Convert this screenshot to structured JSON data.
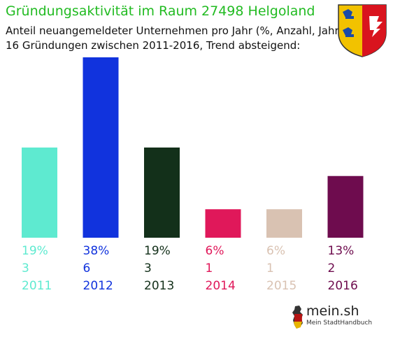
{
  "header": {
    "title": "Gründungsaktivität im Raum 27498 Helgoland",
    "subtitle_1": "Anteil neuangemeldeter Unternehmen pro Jahr (%, Anzahl, Jahr)",
    "subtitle_2": "16 Gründungen zwischen 2011-2016, Trend absteigend:"
  },
  "logo": {
    "brand": "mein.sh",
    "tagline": "Mein StadtHandbuch"
  },
  "colors": {
    "title": "#22bb22"
  },
  "chart_data": {
    "type": "bar",
    "categories": [
      "2011",
      "2012",
      "2013",
      "2014",
      "2015",
      "2016"
    ],
    "values": [
      19,
      38,
      19,
      6,
      6,
      13
    ],
    "percent_labels": [
      "19%",
      "38%",
      "19%",
      "6%",
      "6%",
      "13%"
    ],
    "counts": [
      "3",
      "6",
      "3",
      "1",
      "1",
      "2"
    ],
    "colors": [
      "#5eead0",
      "#1133dd",
      "#13301a",
      "#e0185a",
      "#d9c2b2",
      "#6e0c4e"
    ],
    "unit": "%",
    "ylim": [
      0,
      38
    ],
    "grid": false,
    "legend": "none"
  }
}
